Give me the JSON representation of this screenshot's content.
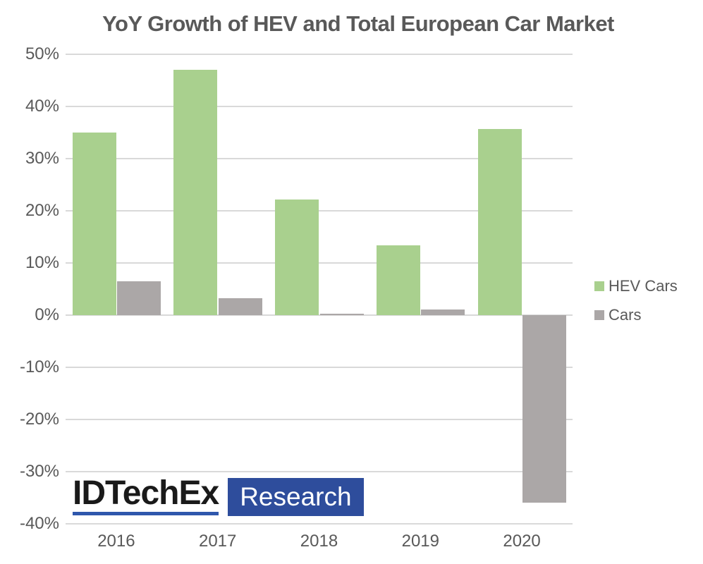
{
  "chart_data": {
    "type": "bar",
    "title": "YoY Growth of HEV and Total European Car Market",
    "categories": [
      "2016",
      "2017",
      "2018",
      "2019",
      "2020"
    ],
    "series": [
      {
        "name": "HEV Cars",
        "color": "#a9d08e",
        "values": [
          35,
          47,
          22.2,
          13.4,
          35.7
        ]
      },
      {
        "name": "Cars",
        "color": "#aba7a7",
        "values": [
          6.5,
          3.2,
          0.3,
          1.1,
          -36
        ]
      }
    ],
    "xlabel": "",
    "ylabel": "",
    "ylim": [
      -40,
      50
    ],
    "ytick_step": 10,
    "yticks": [
      50,
      40,
      30,
      20,
      10,
      0,
      -10,
      -20,
      -30,
      -40
    ],
    "ytick_suffix": "%",
    "grid": true,
    "gridline_color": "#d9d9d9",
    "legend_position": "right",
    "text_color": "#595959"
  },
  "legend": {
    "items": [
      {
        "label": "HEV Cars"
      },
      {
        "label": "Cars"
      }
    ]
  },
  "logo": {
    "brand": "IDTechEx",
    "sub": "Research",
    "brand_color": "#1a1a1a",
    "underline_color": "#2f57ac",
    "box_color": "#2e4d9c",
    "sub_text_color": "#ffffff"
  }
}
